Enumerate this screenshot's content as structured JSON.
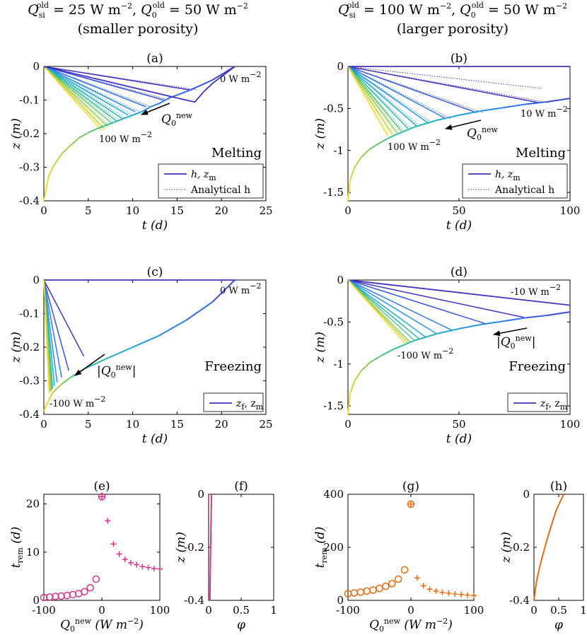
{
  "figure": {
    "col_left": {
      "line1": {
        "Q": "Q",
        "sub1": "si",
        "sup1": "old",
        "eq1": " = 25 W m",
        "exp1": "−2",
        "comma": ", ",
        "sub2": "0",
        "sup2": "old",
        "eq2": " = 50 W m",
        "exp2": "−2"
      },
      "line2": "(smaller porosity)"
    },
    "col_right": {
      "line1": {
        "Q": "Q",
        "sub1": "si",
        "sup1": "old",
        "eq1": " = 100 W m",
        "exp1": "−2",
        "comma": ", ",
        "sub2": "0",
        "sup2": "old",
        "eq2": " = 50 W m",
        "exp2": "−2"
      },
      "line2": "(larger porosity)"
    }
  },
  "chart_data": [
    {
      "id": "a",
      "title": "(a)",
      "type": "line",
      "xlabel": "t (d)",
      "ylabel": "z (m)",
      "xlim": [
        0,
        25
      ],
      "ylim": [
        -0.4,
        0
      ],
      "xticks": [
        "0",
        "5",
        "10",
        "15",
        "20",
        "25"
      ],
      "yticks": [
        "0",
        "-0.1",
        "-0.2",
        "-0.3",
        "-0.4"
      ],
      "kind_label": "Melting",
      "kind_color": "#8a2a5a",
      "legend": {
        "solid": "h, z_m",
        "dotted": "Analytical h"
      },
      "annotations": {
        "top": "0 W m^-2",
        "bottom": "100 W m^-2",
        "arrow": "Q_0^new"
      },
      "series": {
        "hole": [
          [
            0,
            0
          ],
          [
            2,
            -0.0125
          ],
          [
            4,
            -0.025
          ],
          [
            6,
            -0.0375
          ],
          [
            8,
            -0.05
          ],
          [
            10,
            -0.0625
          ],
          [
            12,
            -0.075
          ],
          [
            14,
            -0.0875
          ],
          [
            16,
            -0.1
          ],
          [
            17,
            -0.106
          ],
          [
            18,
            -0.075
          ],
          [
            19,
            -0.05
          ],
          [
            20,
            -0.03
          ],
          [
            21,
            -0.01
          ],
          [
            21.5,
            0
          ]
        ],
        "melting_front": [
          [
            0,
            -0.4
          ],
          [
            0.5,
            -0.33
          ],
          [
            1,
            -0.3
          ],
          [
            2,
            -0.26
          ],
          [
            3,
            -0.235
          ],
          [
            4,
            -0.212
          ],
          [
            5,
            -0.197
          ],
          [
            6,
            -0.185
          ],
          [
            7,
            -0.175
          ],
          [
            8,
            -0.165
          ],
          [
            9,
            -0.155
          ],
          [
            10,
            -0.145
          ],
          [
            11,
            -0.135
          ],
          [
            12,
            -0.12
          ],
          [
            13,
            -0.11
          ],
          [
            14,
            -0.095
          ],
          [
            16.5,
            -0.07
          ],
          [
            19,
            -0.04
          ],
          [
            21.5,
            0
          ]
        ],
        "bundle_endpoints": [
          [
            16.5,
            -0.07
          ],
          [
            13.5,
            -0.1
          ],
          [
            11.5,
            -0.12
          ],
          [
            10.3,
            -0.135
          ],
          [
            9.5,
            -0.145
          ],
          [
            8.8,
            -0.155
          ],
          [
            8.2,
            -0.163
          ],
          [
            7.7,
            -0.17
          ],
          [
            7.2,
            -0.178
          ],
          [
            6.8,
            -0.185
          ],
          [
            6.5,
            -0.19
          ]
        ]
      }
    },
    {
      "id": "b",
      "title": "(b)",
      "type": "line",
      "xlabel": "t (d)",
      "ylabel": "z (m)",
      "xlim": [
        0,
        100
      ],
      "ylim": [
        -1.6,
        0
      ],
      "xticks": [
        "0",
        "50",
        "100"
      ],
      "yticks": [
        "0",
        "-0.5",
        "-1",
        "-1.5"
      ],
      "kind_label": "Melting",
      "kind_color": "#8a2a5a",
      "legend": {
        "solid": "h, z_m",
        "dotted": "Analytical h"
      },
      "annotations": {
        "top": "10 W m^-2",
        "bottom": "100 W m^-2",
        "arrow": "Q_0^new"
      },
      "series": {
        "melting_front": [
          [
            0,
            -1.6
          ],
          [
            1,
            -1.35
          ],
          [
            3,
            -1.2
          ],
          [
            6,
            -1.08
          ],
          [
            10,
            -0.98
          ],
          [
            15,
            -0.9
          ],
          [
            20,
            -0.83
          ],
          [
            30,
            -0.72
          ],
          [
            40,
            -0.64
          ],
          [
            50,
            -0.58
          ],
          [
            60,
            -0.53
          ],
          [
            70,
            -0.49
          ],
          [
            80,
            -0.45
          ],
          [
            90,
            -0.42
          ],
          [
            100,
            -0.38
          ]
        ],
        "bundle_endpoints": [
          [
            86,
            -0.43
          ],
          [
            58,
            -0.55
          ],
          [
            44,
            -0.62
          ],
          [
            36,
            -0.67
          ],
          [
            31,
            -0.71
          ],
          [
            27,
            -0.74
          ],
          [
            24,
            -0.77
          ],
          [
            22,
            -0.79
          ],
          [
            20,
            -0.81
          ],
          [
            18,
            -0.83
          ]
        ]
      }
    },
    {
      "id": "c",
      "title": "(c)",
      "type": "line",
      "xlabel": "t (d)",
      "ylabel": "z (m)",
      "xlim": [
        0,
        25
      ],
      "ylim": [
        -0.4,
        0
      ],
      "xticks": [
        "0",
        "5",
        "10",
        "15",
        "20",
        "25"
      ],
      "yticks": [
        "0",
        "-0.1",
        "-0.2",
        "-0.3",
        "-0.4"
      ],
      "kind_label": "Freezing",
      "kind_color": "#3a3ab0",
      "legend": {
        "solid": "z_f, z_m"
      },
      "annotations": {
        "top": "0 W m^-2",
        "bottom": "-100 W m^-2",
        "arrow": "|Q_0^new|"
      },
      "series": {
        "melting_front": [
          [
            0,
            -0.39
          ],
          [
            0.5,
            -0.36
          ],
          [
            1,
            -0.335
          ],
          [
            2,
            -0.31
          ],
          [
            3,
            -0.29
          ],
          [
            4.5,
            -0.265
          ],
          [
            7,
            -0.235
          ],
          [
            10,
            -0.2
          ],
          [
            13,
            -0.165
          ],
          [
            16,
            -0.12
          ],
          [
            19,
            -0.065
          ],
          [
            21.5,
            0
          ]
        ],
        "bundle_endpoints": [
          [
            4.5,
            -0.227
          ],
          [
            2.8,
            -0.27
          ],
          [
            2,
            -0.29
          ],
          [
            1.5,
            -0.305
          ],
          [
            1.2,
            -0.315
          ],
          [
            1,
            -0.322
          ],
          [
            0.9,
            -0.327
          ],
          [
            0.8,
            -0.331
          ],
          [
            0.7,
            -0.334
          ],
          [
            0.6,
            -0.337
          ]
        ]
      }
    },
    {
      "id": "d",
      "title": "(d)",
      "type": "line",
      "xlabel": "t (d)",
      "ylabel": "z (m)",
      "xlim": [
        0,
        100
      ],
      "ylim": [
        -1.6,
        0
      ],
      "xticks": [
        "0",
        "50",
        "100"
      ],
      "yticks": [
        "0",
        "-0.5",
        "-1",
        "-1.5"
      ],
      "kind_label": "Freezing",
      "kind_color": "#3a3ab0",
      "legend": {
        "solid": "z_f, z_m"
      },
      "annotations": {
        "top": "-10 W m^-2",
        "bottom": "-100 W m^-2",
        "arrow": "|Q_0^new|"
      },
      "series": {
        "melting_front": [
          [
            0,
            -1.6
          ],
          [
            1,
            -1.35
          ],
          [
            3,
            -1.2
          ],
          [
            6,
            -1.08
          ],
          [
            10,
            -0.98
          ],
          [
            15,
            -0.9
          ],
          [
            20,
            -0.83
          ],
          [
            30,
            -0.72
          ],
          [
            40,
            -0.64
          ],
          [
            50,
            -0.58
          ],
          [
            60,
            -0.53
          ],
          [
            70,
            -0.49
          ],
          [
            80,
            -0.45
          ],
          [
            90,
            -0.42
          ],
          [
            100,
            -0.38
          ]
        ],
        "bundle_endpoints": [
          [
            80,
            -0.45
          ],
          [
            62,
            -0.52
          ],
          [
            47,
            -0.6
          ],
          [
            40,
            -0.64
          ],
          [
            35,
            -0.68
          ],
          [
            32,
            -0.7
          ],
          [
            30,
            -0.72
          ],
          [
            28,
            -0.74
          ],
          [
            27,
            -0.75
          ],
          [
            26,
            -0.76
          ]
        ],
        "top_line_end": [
          100,
          -0.3
        ]
      }
    },
    {
      "id": "e",
      "title": "(e)",
      "type": "scatter",
      "xlabel": "Q_0^new (W m^-2)",
      "ylabel": "t_rem (d)",
      "xlim": [
        -100,
        100
      ],
      "ylim": [
        0,
        22
      ],
      "xticks": [
        "-100",
        "0",
        "100"
      ],
      "yticks": [
        "0",
        "10",
        "20"
      ],
      "color": "#d6338a",
      "circles_x": [
        -100,
        -90,
        -80,
        -70,
        -60,
        -50,
        -40,
        -30,
        -20,
        -10
      ],
      "circles_y": [
        0.6,
        0.7,
        0.8,
        0.9,
        1.0,
        1.2,
        1.4,
        1.8,
        2.6,
        4.4
      ],
      "plus_x": [
        10,
        20,
        30,
        40,
        50,
        60,
        70,
        80,
        90,
        100
      ],
      "plus_y": [
        16.5,
        11.7,
        9.6,
        8.5,
        7.8,
        7.4,
        7.0,
        6.8,
        6.6,
        6.5
      ],
      "zero_point": [
        0,
        21.5
      ]
    },
    {
      "id": "f",
      "title": "(f)",
      "type": "line",
      "xlabel": "φ",
      "ylabel": "z (m)",
      "xlim": [
        0,
        1
      ],
      "ylim": [
        -0.4,
        0
      ],
      "xticks": [
        "0",
        "0.5",
        "1"
      ],
      "yticks": [
        "0",
        "-0.2",
        "-0.4"
      ],
      "color": "#d6338a",
      "profile": [
        [
          0.02,
          -0.4
        ],
        [
          0.03,
          -0.2
        ],
        [
          0.045,
          0
        ]
      ]
    },
    {
      "id": "g",
      "title": "(g)",
      "type": "scatter",
      "xlabel": "Q_0^new (W m^-2)",
      "ylabel": "t_rem (d)",
      "xlim": [
        -100,
        100
      ],
      "ylim": [
        0,
        400
      ],
      "xticks": [
        "-100",
        "0",
        "100"
      ],
      "yticks": [
        "0",
        "200",
        "400"
      ],
      "color": "#e86a10",
      "circles_x": [
        -100,
        -90,
        -80,
        -70,
        -60,
        -50,
        -40,
        -30,
        -20,
        -10
      ],
      "circles_y": [
        25,
        28,
        31,
        35,
        39,
        45,
        53,
        63,
        80,
        115
      ],
      "plus_x": [
        10,
        20,
        30,
        40,
        50,
        60,
        70,
        80,
        90,
        100
      ],
      "plus_y": [
        85,
        55,
        42,
        35,
        30,
        27,
        24,
        22,
        20,
        18
      ],
      "zero_point": [
        0,
        363
      ]
    },
    {
      "id": "h",
      "title": "(h)",
      "type": "line",
      "xlabel": "φ",
      "ylabel": "z (m)",
      "xlim": [
        0,
        1
      ],
      "ylim": [
        -0.4,
        0
      ],
      "xticks": [
        "0",
        "0.5",
        "1"
      ],
      "yticks": [
        "0",
        "-0.2",
        "-0.4"
      ],
      "color": "#e86a10",
      "profile": [
        [
          0,
          -0.4
        ],
        [
          0.05,
          -0.33
        ],
        [
          0.12,
          -0.27
        ],
        [
          0.22,
          -0.2
        ],
        [
          0.33,
          -0.13
        ],
        [
          0.45,
          -0.06
        ],
        [
          0.6,
          0
        ]
      ]
    }
  ]
}
